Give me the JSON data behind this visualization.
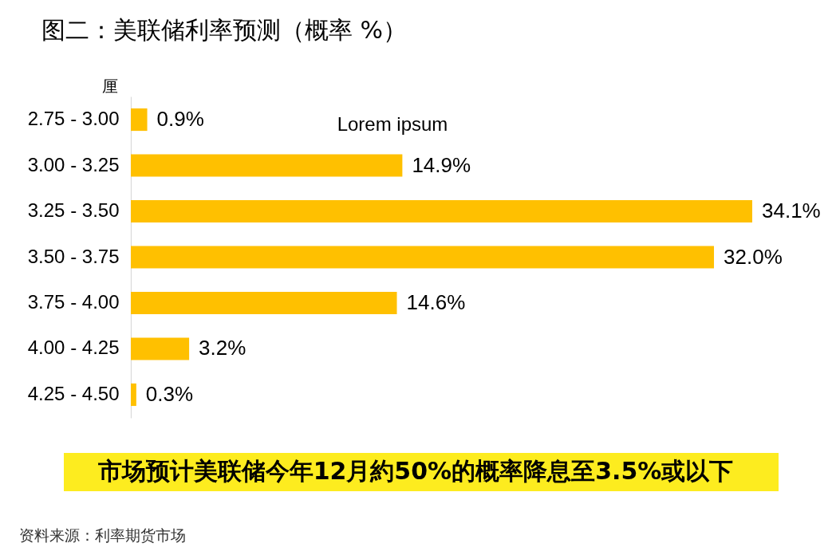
{
  "chart_data": {
    "type": "bar",
    "orientation": "horizontal",
    "title": "图二：美联储利率预测（概率 %）",
    "ylabel": "厘",
    "categories": [
      "2.75 - 3.00",
      "3.00 - 3.25",
      "3.25 - 3.50",
      "3.50 - 3.75",
      "3.75 - 4.00",
      "4.00 - 4.25",
      "4.25 - 4.50"
    ],
    "values": [
      0.9,
      14.9,
      34.1,
      32.0,
      14.6,
      3.2,
      0.3
    ],
    "value_labels": [
      "0.9%",
      "14.9%",
      "34.1%",
      "32.0%",
      "14.6%",
      "3.2%",
      "0.3%"
    ],
    "color": "#ffc000",
    "tick_labels": "y",
    "annotations": [
      "Lorem ipsum",
      "市场预计美联储今年12月約50%的概率降息至3.5%或以下",
      "资料来源：利率期货市场"
    ]
  }
}
